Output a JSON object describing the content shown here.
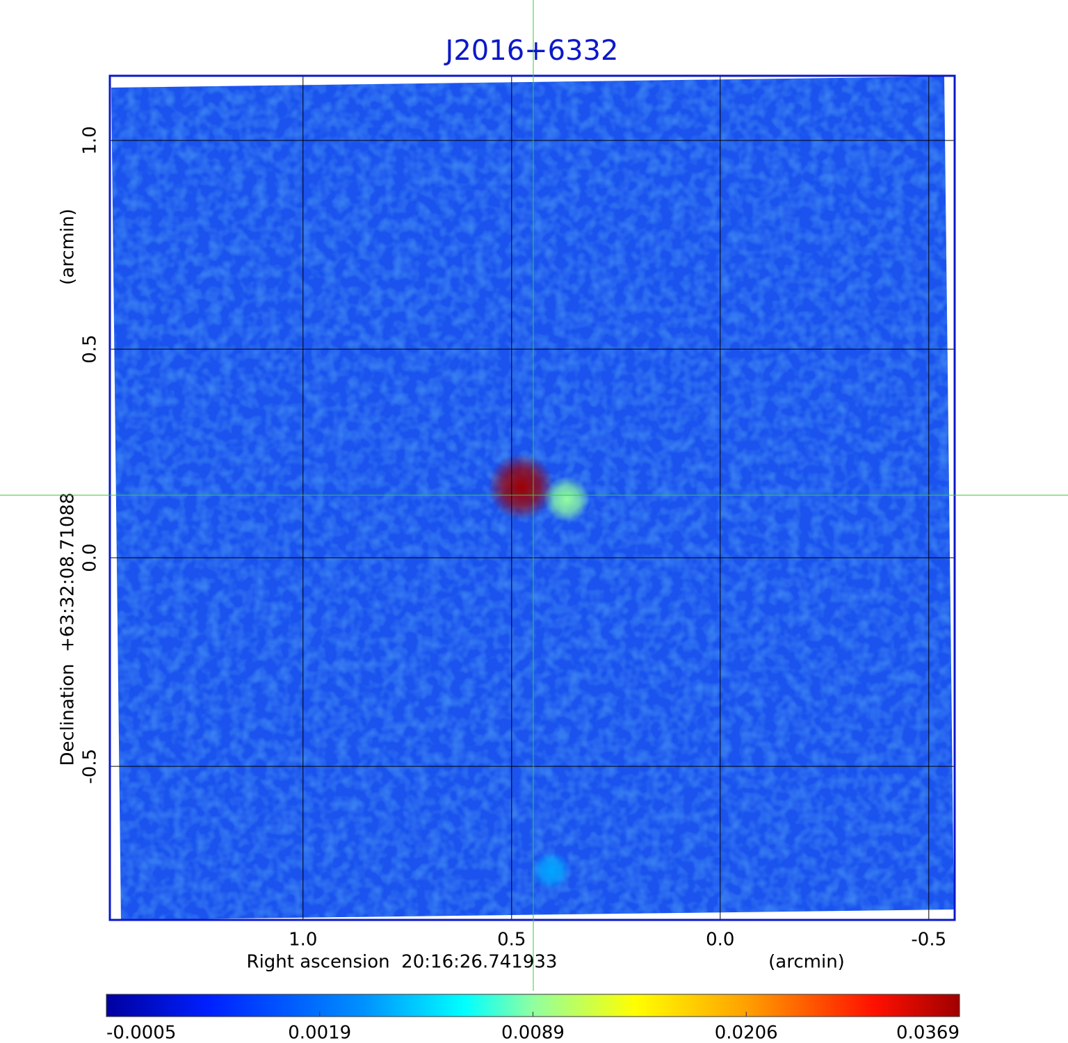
{
  "chart_data": {
    "type": "image",
    "title": "J2016+6332",
    "x_label": "Right ascension  20:16:26.741933",
    "x_unit": "(arcmin)",
    "y_label": "Declination  +63:32:08.71088",
    "y_unit": "(arcmin)",
    "xlim": [
      1.463,
      -0.562
    ],
    "ylim": [
      -0.868,
      1.155
    ],
    "xticks": [
      {
        "value": 1,
        "label": "1.0"
      },
      0.5,
      {
        "value": 0,
        "label": "0.0"
      },
      -0.5
    ],
    "yticks": [
      {
        "value": -0.5,
        "label": "-0.5"
      },
      {
        "value": 0,
        "label": "0.0"
      },
      0.5,
      {
        "value": 1,
        "label": "1.0"
      }
    ],
    "grid": true,
    "crosshair": {
      "x": 0.448,
      "y": 0.15
    },
    "sources": {
      "x": [
        0.477,
        0.368,
        0.405
      ],
      "y": [
        0.17,
        0.14,
        -0.75
      ],
      "values": [
        0.0369,
        0.0089,
        0.004
      ]
    },
    "colormap": "jet",
    "colorbar_ticks": [
      -0.0005,
      0.0019,
      0.0089,
      0.0206,
      0.0369
    ]
  }
}
